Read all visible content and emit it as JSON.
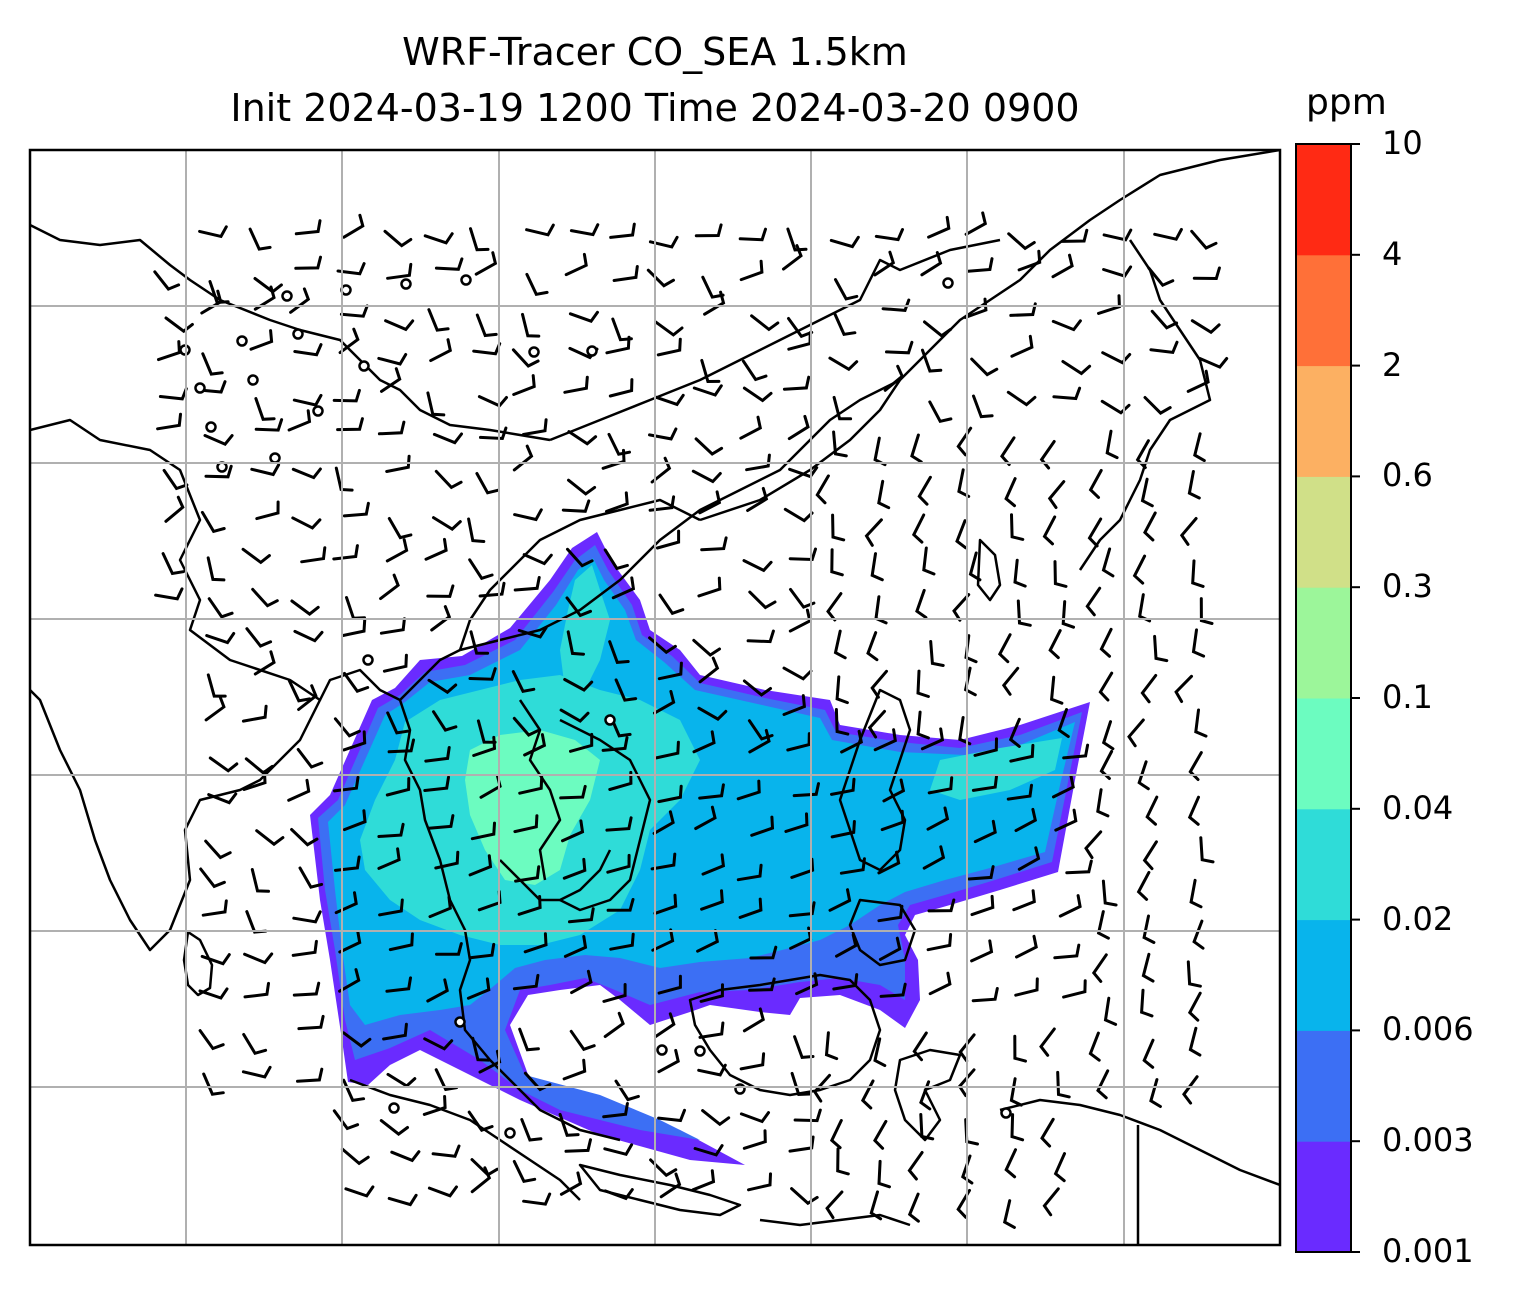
{
  "title": {
    "line1": "WRF-Tracer CO_SEA 1.5km",
    "line2": "Init 2024-03-19 1200 Time 2024-03-20 0900"
  },
  "colorbar": {
    "unit": "ppm",
    "tick_labels": [
      "0.001",
      "0.003",
      "0.006",
      "0.02",
      "0.04",
      "0.1",
      "0.3",
      "0.6",
      "2",
      "4",
      "10"
    ],
    "colors": [
      "#6a2bff",
      "#3c6ff4",
      "#08b4ec",
      "#2fdcd8",
      "#6cfcc0",
      "#9cf69a",
      "#d0e088",
      "#fcb062",
      "#ff7038",
      "#ff2a14"
    ]
  },
  "map": {
    "gridlines": true,
    "plume_colors": {
      "outer": "#6a2bff",
      "low": "#3c6ff4",
      "mid": "#08b4ec",
      "high": "#2fdcd8",
      "peak": "#6cfcc0"
    }
  }
}
